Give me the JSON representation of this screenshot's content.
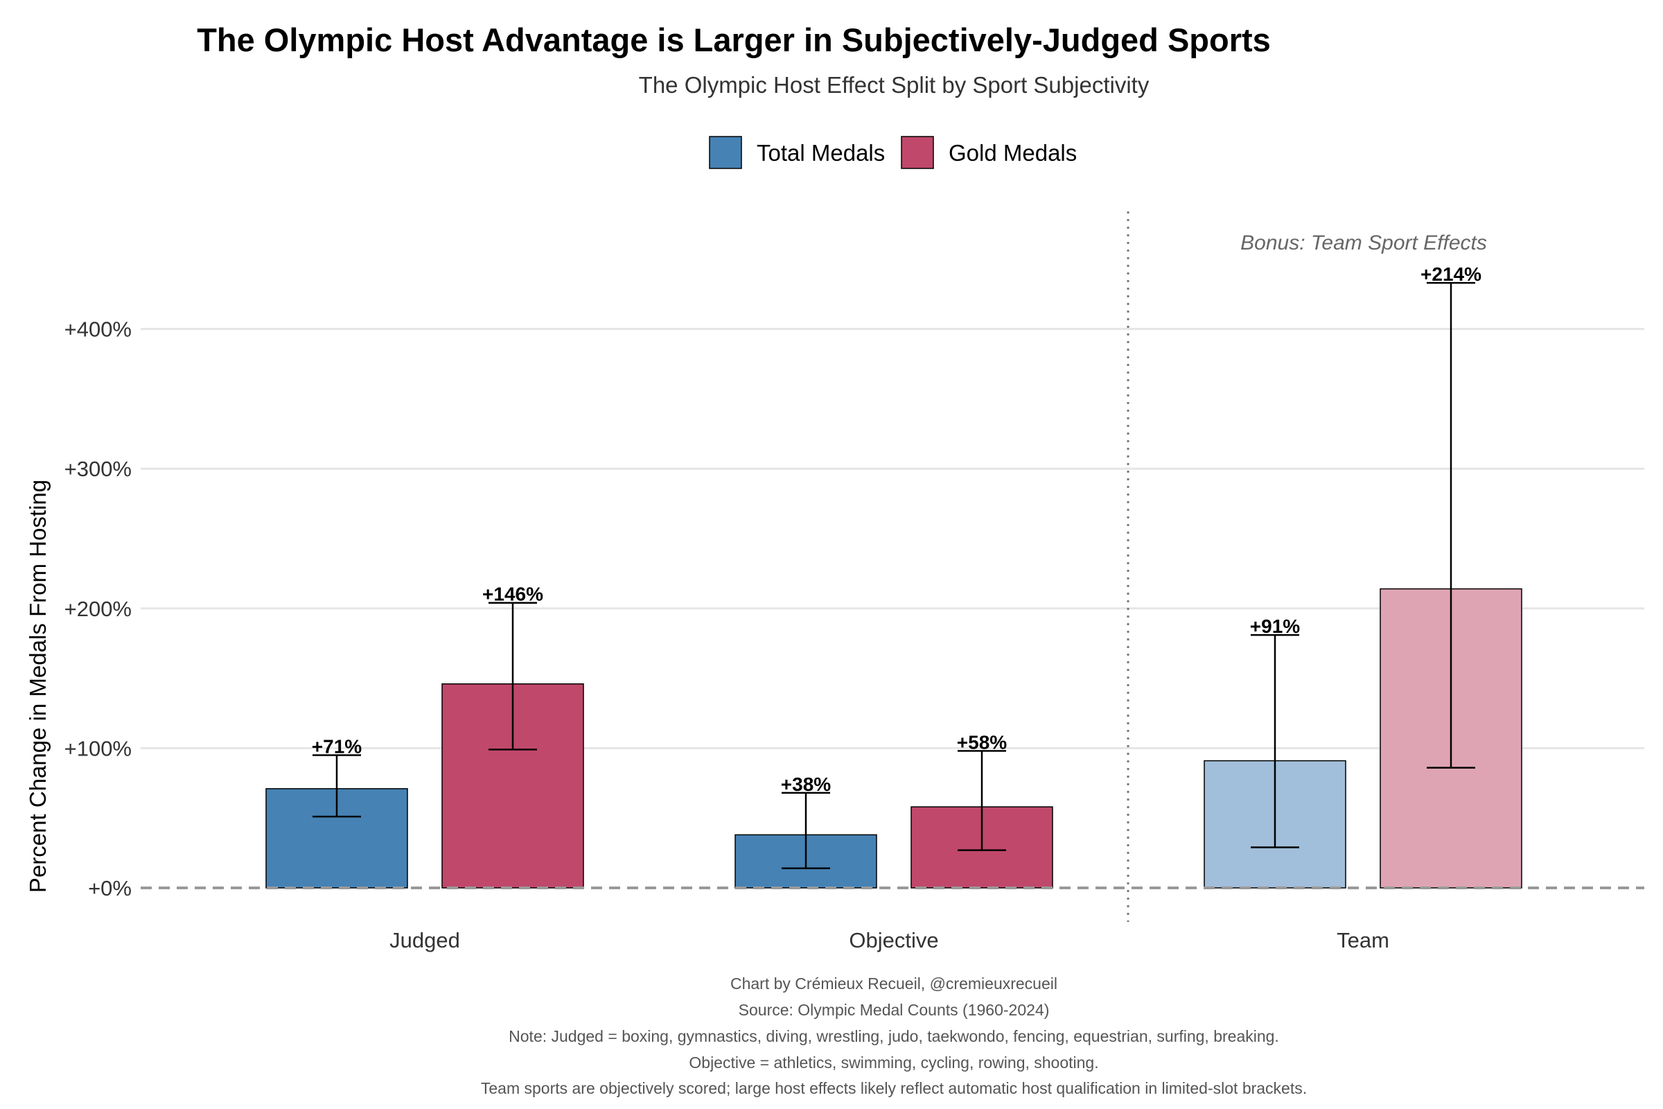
{
  "chart_data": {
    "type": "bar",
    "title": "The Olympic Host Advantage is Larger in Subjectively-Judged Sports",
    "subtitle": "The Olympic Host Effect Split by Sport Subjectivity",
    "ylabel": "Percent Change in Medals From Hosting",
    "xlabel": "",
    "categories": [
      "Judged",
      "Objective",
      "Team"
    ],
    "y_ticks": [
      "+0%",
      "+100%",
      "+200%",
      "+300%",
      "+400%"
    ],
    "y_tick_values": [
      0,
      100,
      200,
      300,
      400
    ],
    "ylim": [
      -23,
      470
    ],
    "grid": "horizontal",
    "legend_position": "top",
    "series": [
      {
        "name": "Total Medals",
        "color": "#4682B4",
        "values": [
          71,
          38,
          91
        ],
        "labels": [
          "+71%",
          "+38%",
          "+91%"
        ],
        "error_low": [
          51,
          14,
          29
        ],
        "error_high": [
          95,
          68,
          181
        ]
      },
      {
        "name": "Gold Medals",
        "color": "#C0486A",
        "values": [
          146,
          58,
          214
        ],
        "labels": [
          "+146%",
          "+58%",
          "+214%"
        ],
        "error_low": [
          99,
          27,
          86
        ],
        "error_high": [
          204,
          98,
          433
        ]
      }
    ],
    "faded_categories": [
      "Team"
    ],
    "faded_colors": [
      "#A1BEDA",
      "#DFA4B4"
    ],
    "annotation": "Bonus: Team Sport Effects",
    "captions": [
      "Chart by Crémieux Recueil, @cremieuxrecueil",
      "Source: Olympic Medal Counts (1960-2024)",
      "Note: Judged = boxing, gymnastics, diving, wrestling, judo, taekwondo, fencing, equestrian, surfing, breaking.",
      "Objective = athletics, swimming, cycling, rowing, shooting.",
      "Team sports are objectively scored; large host effects likely reflect automatic host qualification in limited-slot brackets."
    ],
    "colors": {
      "grid": "#E5E5E5",
      "baseline": "#999999",
      "separator": "#777777"
    }
  }
}
